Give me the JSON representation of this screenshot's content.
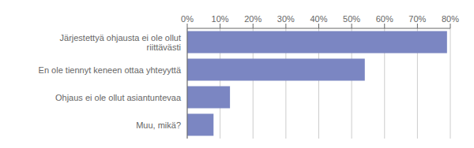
{
  "chart_data": {
    "type": "bar",
    "orientation": "horizontal",
    "categories": [
      "Muu, mikä?",
      "Ohjaus ei ole ollut asiantuntevaa",
      "En ole tiennyt keneen ottaa yhteyyttä",
      "Järjestettyä ohjausta ei ole ollut\nriittävästi"
    ],
    "values": [
      0.08,
      0.13,
      0.54,
      0.79
    ],
    "color": "#7b86c2",
    "xlim": [
      0,
      0.8
    ],
    "xticks": [
      {
        "value": 0.0,
        "label": "0%"
      },
      {
        "value": 0.1,
        "label": "10%"
      },
      {
        "value": 0.2,
        "label": "20%"
      },
      {
        "value": 0.3,
        "label": "30%"
      },
      {
        "value": 0.4,
        "label": "40%"
      },
      {
        "value": 0.5,
        "label": "50%"
      },
      {
        "value": 0.6,
        "label": "60%"
      },
      {
        "value": 0.7,
        "label": "70%"
      },
      {
        "value": 0.8,
        "label": "80%"
      }
    ],
    "grid": true
  }
}
